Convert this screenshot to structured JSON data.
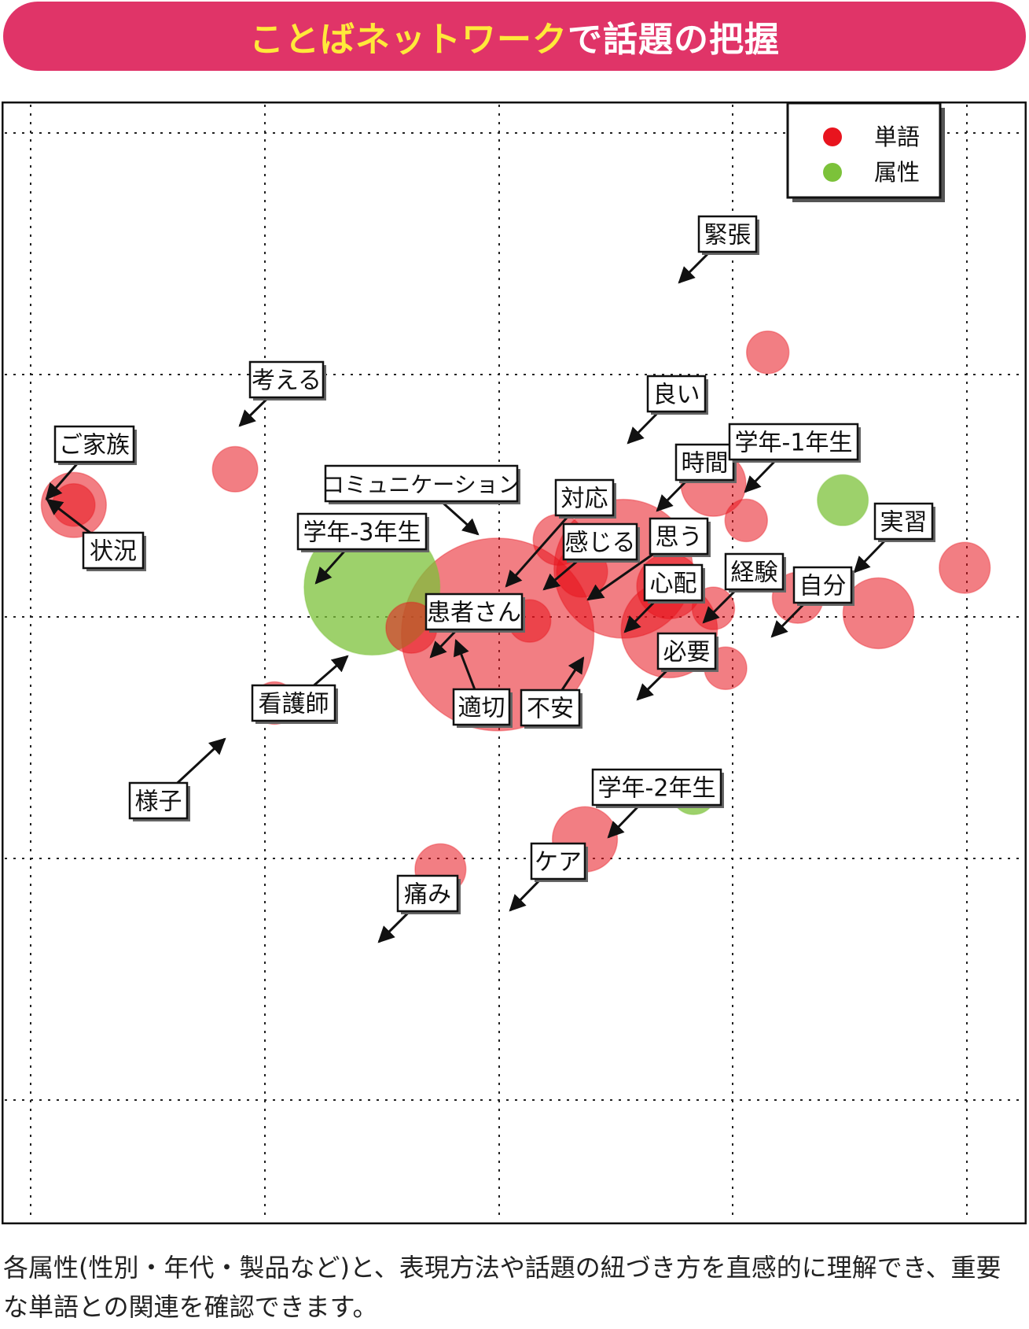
{
  "header": {
    "title_highlight": "ことばネットワーク",
    "title_rest": "で話題の把握",
    "bg_color": "#e03468",
    "highlight_color": "#ffe93a"
  },
  "legend": {
    "placement": "top-right",
    "items": [
      {
        "label": "単語",
        "color": "#e8141e"
      },
      {
        "label": "属性",
        "color": "#7cc23a"
      }
    ]
  },
  "chart_data": {
    "type": "scatter",
    "title": "",
    "xlabel": "",
    "ylabel": "",
    "grid": true,
    "x_ticks": 5,
    "y_ticks": 5,
    "series": [
      {
        "name": "単語",
        "color": "#e8141e",
        "points": [
          {
            "label": "緊張",
            "x": 0.786,
            "y": 0.227,
            "size": 0.3
          },
          {
            "label": "考える",
            "x": 0.218,
            "y": 0.348,
            "size": 0.32
          },
          {
            "label": "ご家族",
            "x": 0.046,
            "y": 0.385,
            "size": 0.46
          },
          {
            "label": "状況",
            "x": 0.046,
            "y": 0.385,
            "size": 0.3
          },
          {
            "label": "良い",
            "x": 0.728,
            "y": 0.363,
            "size": 0.46
          },
          {
            "label": "時間",
            "x": 0.763,
            "y": 0.401,
            "size": 0.3
          },
          {
            "label": "コミュニケーション",
            "x": 0.563,
            "y": 0.421,
            "size": 0.36
          },
          {
            "label": "対応",
            "x": 0.588,
            "y": 0.454,
            "size": 0.36
          },
          {
            "label": "感じる",
            "x": 0.632,
            "y": 0.451,
            "size": 0.98
          },
          {
            "label": "思う",
            "x": 0.681,
            "y": 0.469,
            "size": 0.46
          },
          {
            "label": "心配",
            "x": 0.728,
            "y": 0.492,
            "size": 0.3
          },
          {
            "label": "経験",
            "x": 0.818,
            "y": 0.481,
            "size": 0.36
          },
          {
            "label": "実習",
            "x": 0.996,
            "y": 0.45,
            "size": 0.36
          },
          {
            "label": "自分",
            "x": 0.904,
            "y": 0.497,
            "size": 0.5
          },
          {
            "label": "患者さん",
            "x": 0.498,
            "y": 0.519,
            "size": 1.36
          },
          {
            "label": "適切",
            "x": 0.532,
            "y": 0.505,
            "size": 0.3
          },
          {
            "label": "看護師",
            "x": 0.406,
            "y": 0.512,
            "size": 0.36
          },
          {
            "label": "不安",
            "x": 0.681,
            "y": 0.514,
            "size": 0.68
          },
          {
            "label": "必要",
            "x": 0.741,
            "y": 0.554,
            "size": 0.3
          },
          {
            "label": "様子",
            "x": 0.26,
            "y": 0.59,
            "size": 0.3
          },
          {
            "label": "ケア",
            "x": 0.591,
            "y": 0.731,
            "size": 0.46
          },
          {
            "label": "痛み",
            "x": 0.437,
            "y": 0.762,
            "size": 0.36
          }
        ]
      },
      {
        "name": "属性",
        "color": "#7cc23a",
        "points": [
          {
            "label": "学年-1年生",
            "x": 0.866,
            "y": 0.38,
            "size": 0.36
          },
          {
            "label": "学年-3年生",
            "x": 0.364,
            "y": 0.47,
            "size": 0.96
          },
          {
            "label": "学年-2年生",
            "x": 0.707,
            "y": 0.682,
            "size": 0.32
          }
        ]
      }
    ]
  },
  "caption": "各属性(性別・年代・製品など)と、表現方法や話題の紐づき方を直感的に理解でき、重要な単語との関連を確認できます。"
}
